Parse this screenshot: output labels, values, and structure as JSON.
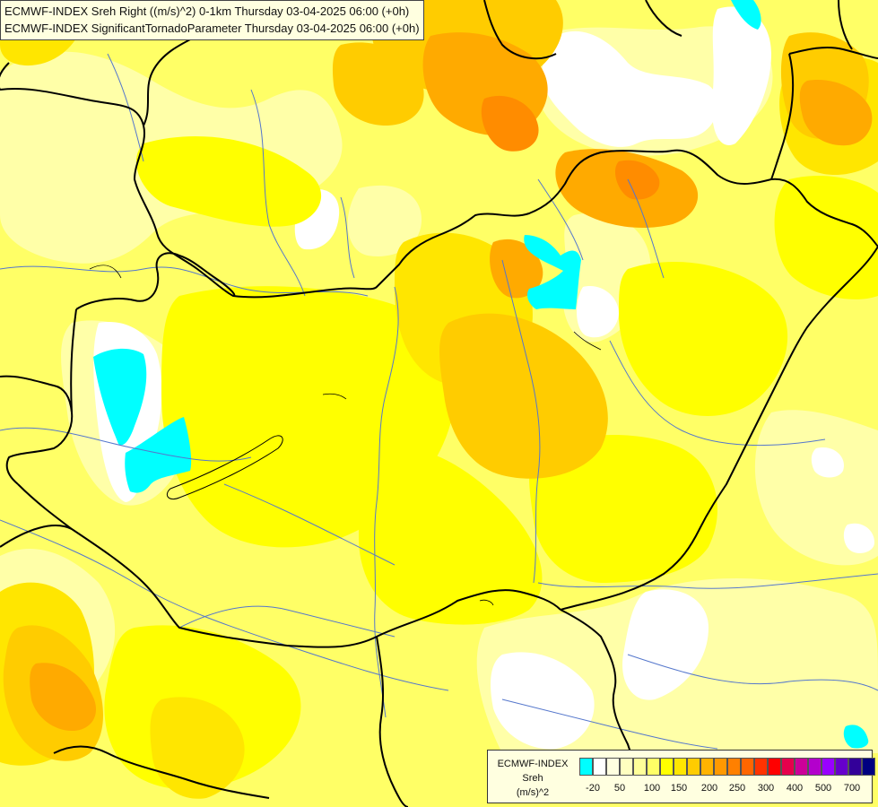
{
  "header": {
    "line1": "ECMWF-INDEX Sreh Right ((m/s)^2) 0-1km Thursday 03-04-2025 06:00 (+0h)",
    "line2": "ECMWF-INDEX SignificantTornadoParameter Thursday 03-04-2025 06:00 (+0h)"
  },
  "legend": {
    "source": "ECMWF-INDEX",
    "variable": "Sreh",
    "unit": "(m/s)^2",
    "colors": [
      "#00ffff",
      "#ffffff",
      "#ffffe0",
      "#ffffc0",
      "#ffff99",
      "#ffff66",
      "#ffff00",
      "#ffe600",
      "#ffcc00",
      "#ffb300",
      "#ff9900",
      "#ff8000",
      "#ff6600",
      "#ff3300",
      "#ff0000",
      "#e6004c",
      "#cc0099",
      "#b300cc",
      "#9900ff",
      "#6600cc",
      "#330099",
      "#000080"
    ],
    "ticks": [
      "-20",
      "50",
      "100",
      "150",
      "200",
      "250",
      "300",
      "400",
      "500",
      "700"
    ]
  },
  "fill_colors": {
    "base": "#ffff66",
    "pale": "#ffffb0",
    "light": "#ffff99",
    "yellow": "#ffff00",
    "gold": "#ffe600",
    "amber": "#ffcc00",
    "orange": "#ffaa00",
    "deep_orange": "#ff8c00",
    "red_orange": "#ff6a00",
    "white": "#ffffff",
    "cyan": "#00ffff",
    "border": "#000000",
    "river": "#5577cc"
  }
}
